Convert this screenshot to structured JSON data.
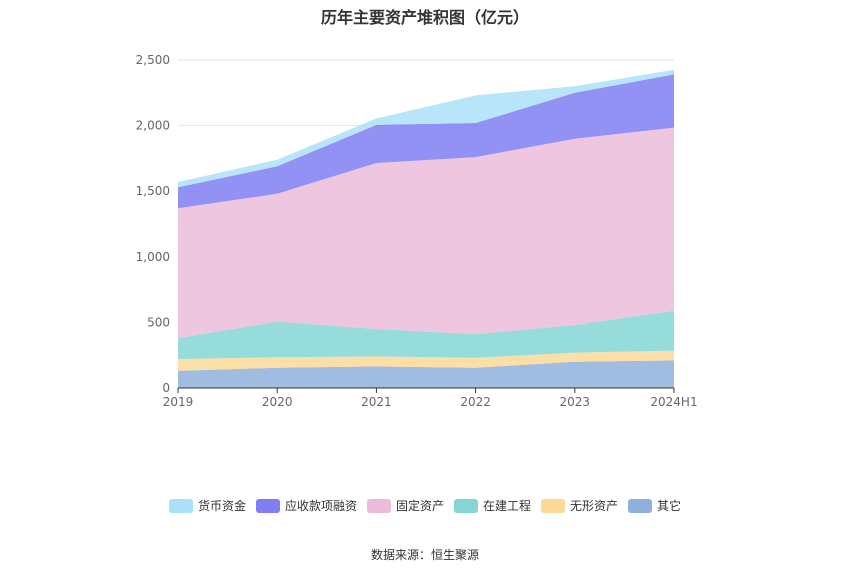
{
  "chart_data": {
    "type": "area",
    "stacked": true,
    "title": "历年主要资产堆积图（亿元）",
    "categories": [
      "2019",
      "2020",
      "2021",
      "2022",
      "2023",
      "2024H1"
    ],
    "ylim": [
      0,
      2500
    ],
    "y_ticks": [
      "0",
      "500",
      "1,000",
      "1,500",
      "2,000",
      "2,500"
    ],
    "grid": true,
    "legend_position": "bottom",
    "series": [
      {
        "name": "其它",
        "color": "#8fb0dc",
        "values": [
          130,
          155,
          165,
          155,
          200,
          210
        ]
      },
      {
        "name": "无形资产",
        "color": "#fcd996",
        "values": [
          90,
          80,
          75,
          75,
          70,
          75
        ]
      },
      {
        "name": "在建工程",
        "color": "#84d6d3",
        "values": [
          160,
          270,
          210,
          180,
          210,
          305
        ]
      },
      {
        "name": "固定资产",
        "color": "#ebbcd9",
        "values": [
          990,
          975,
          1265,
          1350,
          1420,
          1395
        ]
      },
      {
        "name": "应收款项融资",
        "color": "#7f7ef2",
        "values": [
          160,
          210,
          290,
          260,
          350,
          405
        ]
      },
      {
        "name": "货币资金",
        "color": "#abe0f8",
        "values": [
          40,
          50,
          50,
          210,
          50,
          35
        ]
      }
    ],
    "legend_order": [
      "货币资金",
      "应收款项融资",
      "固定资产",
      "在建工程",
      "无形资产",
      "其它"
    ]
  },
  "source": "数据来源：恒生聚源"
}
